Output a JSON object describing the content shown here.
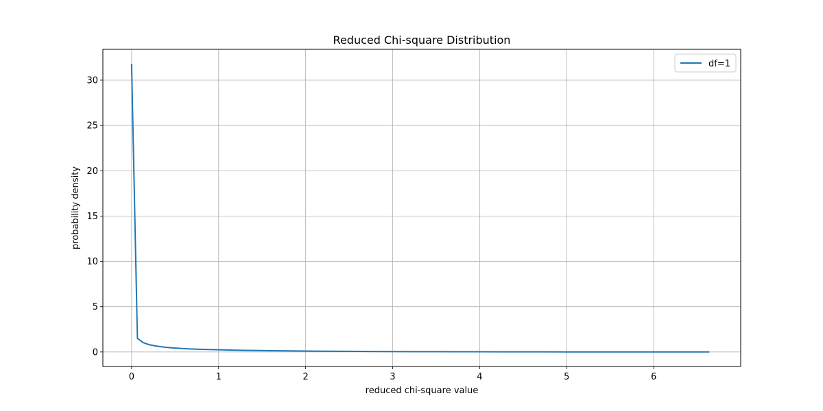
{
  "chart_data": {
    "type": "line",
    "title": "Reduced Chi-square Distribution",
    "xlabel": "reduced chi-square value",
    "ylabel": "probability density",
    "xlim": [
      -0.33,
      7.0
    ],
    "ylim": [
      -1.6,
      33.4
    ],
    "x_ticks": [
      0,
      1,
      2,
      3,
      4,
      5,
      6
    ],
    "y_ticks": [
      0,
      5,
      10,
      15,
      20,
      25,
      30
    ],
    "grid": true,
    "legend": {
      "placement": "top-right",
      "entries": [
        "df=1"
      ]
    },
    "series": [
      {
        "name": "df=1",
        "color": "#1f77b4",
        "x": [
          0.0,
          0.067,
          0.134,
          0.2,
          0.268,
          0.335,
          0.402,
          0.469,
          0.536,
          0.603,
          0.67,
          0.8,
          1.0,
          1.2,
          1.4,
          1.6,
          1.8,
          2.0,
          2.25,
          2.5,
          2.75,
          3.0,
          3.25,
          3.5,
          3.75,
          4.0,
          4.25,
          4.5,
          4.75,
          5.0,
          5.25,
          5.5,
          5.75,
          6.0,
          6.25,
          6.5,
          6.64
        ],
        "y": [
          31.8,
          1.49,
          1.03,
          0.81,
          0.68,
          0.58,
          0.51,
          0.45,
          0.41,
          0.37,
          0.34,
          0.29,
          0.24,
          0.2,
          0.17,
          0.14,
          0.12,
          0.1,
          0.086,
          0.07,
          0.058,
          0.048,
          0.039,
          0.033,
          0.027,
          0.022,
          0.018,
          0.015,
          0.013,
          0.011,
          0.009,
          0.0075,
          0.006,
          0.005,
          0.004,
          0.0035,
          0.003
        ]
      }
    ]
  }
}
